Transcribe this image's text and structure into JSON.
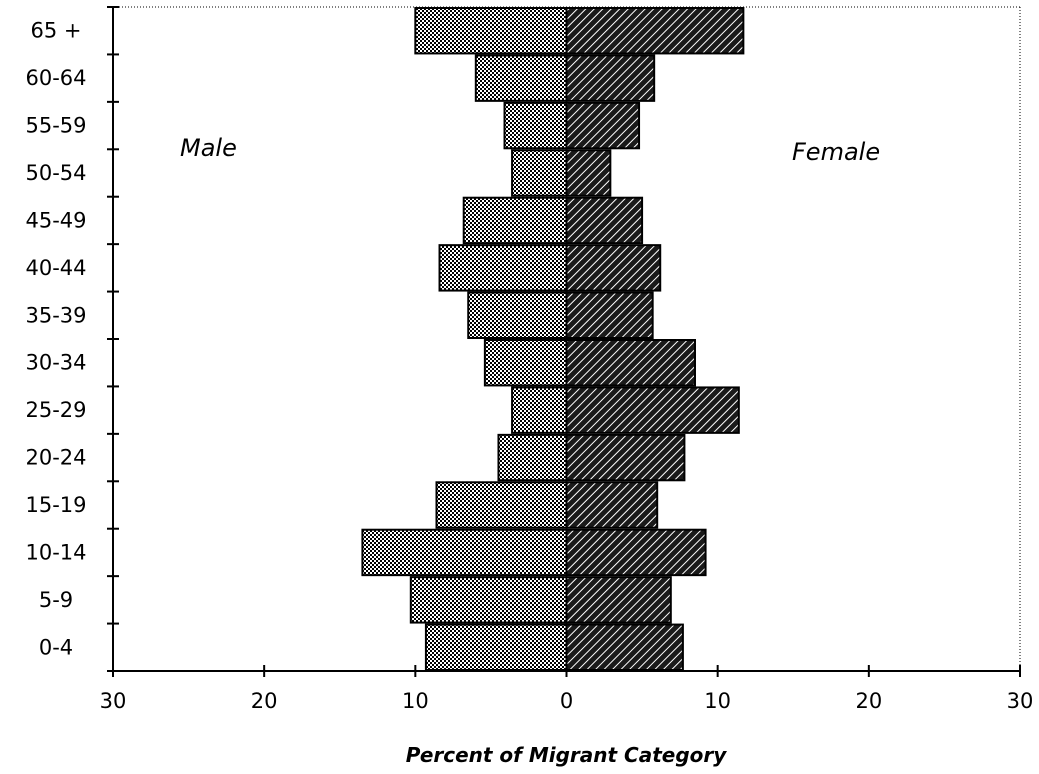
{
  "chart_data": {
    "type": "bar",
    "orientation": "horizontal-diverging",
    "categories": [
      "0-4",
      "5-9",
      "10-14",
      "15-19",
      "20-24",
      "25-29",
      "30-34",
      "35-39",
      "40-44",
      "45-49",
      "50-54",
      "55-59",
      "60-64",
      "65 +"
    ],
    "series": [
      {
        "name": "Male",
        "side": "left",
        "color": "#cfcfcf",
        "pattern": "checker",
        "values": [
          9.3,
          10.3,
          13.5,
          8.6,
          4.5,
          3.6,
          5.4,
          6.5,
          8.4,
          6.8,
          3.6,
          4.1,
          6.0,
          10.0
        ]
      },
      {
        "name": "Female",
        "side": "right",
        "color": "#333333",
        "pattern": "diagonal-hatch",
        "values": [
          7.7,
          6.9,
          9.2,
          6.0,
          7.8,
          11.4,
          8.5,
          5.7,
          6.2,
          5.0,
          2.9,
          4.8,
          5.8,
          11.7
        ]
      }
    ],
    "xlabel": "Percent of Migrant Category",
    "xlim": [
      -30,
      30
    ],
    "xticks": [
      -30,
      -20,
      -10,
      0,
      10,
      20,
      30
    ],
    "xtick_labels": [
      "30",
      "20",
      "10",
      "0",
      "10",
      "20",
      "30"
    ],
    "grid": false,
    "side_labels": {
      "left": "Male",
      "right": "Female"
    }
  }
}
